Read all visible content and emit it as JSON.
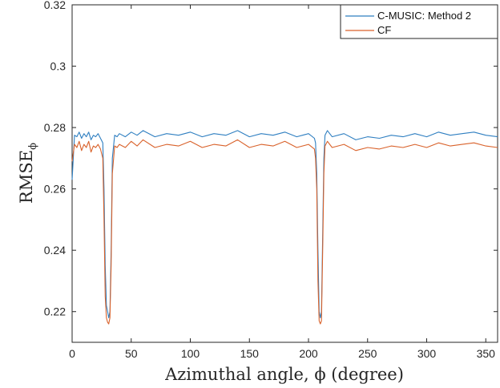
{
  "chart_data": {
    "type": "line",
    "xlabel": "Azimuthal angle, ϕ (degree)",
    "ylabel_main": "RMSE",
    "ylabel_sub": "ϕ",
    "xlim": [
      0,
      360
    ],
    "ylim": [
      0.21,
      0.32
    ],
    "xticks": [
      0,
      50,
      100,
      150,
      200,
      250,
      300,
      350
    ],
    "yticks": [
      0.22,
      0.24,
      0.26,
      0.28,
      0.3,
      0.32
    ],
    "ytick_labels": [
      "0.22",
      "0.24",
      "0.26",
      "0.28",
      "0.3",
      "0.32"
    ],
    "grid": false,
    "legend_position": "top-right",
    "series": [
      {
        "name": "C-MUSIC: Method 2",
        "color": "#2f7fc1"
      },
      {
        "name": "CF",
        "color": "#d9622b"
      }
    ],
    "x": [
      0,
      2,
      4,
      6,
      8,
      10,
      12,
      14,
      16,
      18,
      20,
      22,
      24,
      26,
      27,
      28,
      29,
      30,
      31,
      32,
      33,
      34,
      36,
      38,
      40,
      45,
      50,
      55,
      60,
      70,
      80,
      90,
      100,
      110,
      120,
      130,
      140,
      150,
      160,
      170,
      180,
      190,
      200,
      205,
      206,
      207,
      208,
      209,
      210,
      211,
      212,
      213,
      214,
      216,
      220,
      230,
      240,
      250,
      260,
      270,
      280,
      290,
      300,
      310,
      320,
      330,
      340,
      350,
      360
    ],
    "values_cmusic": [
      0.263,
      0.2775,
      0.277,
      0.2785,
      0.2765,
      0.278,
      0.277,
      0.2785,
      0.276,
      0.2775,
      0.277,
      0.278,
      0.2765,
      0.275,
      0.26,
      0.235,
      0.222,
      0.22,
      0.218,
      0.22,
      0.24,
      0.27,
      0.2775,
      0.277,
      0.278,
      0.277,
      0.2785,
      0.2775,
      0.279,
      0.277,
      0.278,
      0.2775,
      0.2785,
      0.277,
      0.278,
      0.2775,
      0.279,
      0.277,
      0.278,
      0.2775,
      0.2785,
      0.277,
      0.278,
      0.2765,
      0.275,
      0.265,
      0.24,
      0.22,
      0.218,
      0.22,
      0.245,
      0.27,
      0.2775,
      0.279,
      0.277,
      0.278,
      0.276,
      0.277,
      0.2765,
      0.2775,
      0.277,
      0.278,
      0.277,
      0.2785,
      0.2775,
      0.278,
      0.2785,
      0.2775,
      0.277
    ],
    "values_cf": [
      0.269,
      0.2745,
      0.2735,
      0.2755,
      0.2725,
      0.2745,
      0.2735,
      0.2755,
      0.272,
      0.274,
      0.2735,
      0.2745,
      0.273,
      0.27,
      0.25,
      0.225,
      0.218,
      0.2165,
      0.216,
      0.218,
      0.235,
      0.265,
      0.274,
      0.2735,
      0.2745,
      0.2735,
      0.2755,
      0.274,
      0.276,
      0.2735,
      0.2745,
      0.274,
      0.2755,
      0.2735,
      0.2745,
      0.274,
      0.276,
      0.2735,
      0.2745,
      0.274,
      0.2755,
      0.2735,
      0.2745,
      0.273,
      0.27,
      0.26,
      0.23,
      0.217,
      0.216,
      0.217,
      0.24,
      0.265,
      0.274,
      0.2755,
      0.2735,
      0.2745,
      0.2725,
      0.2735,
      0.273,
      0.274,
      0.2735,
      0.2745,
      0.2735,
      0.275,
      0.274,
      0.2745,
      0.275,
      0.274,
      0.2735
    ]
  }
}
